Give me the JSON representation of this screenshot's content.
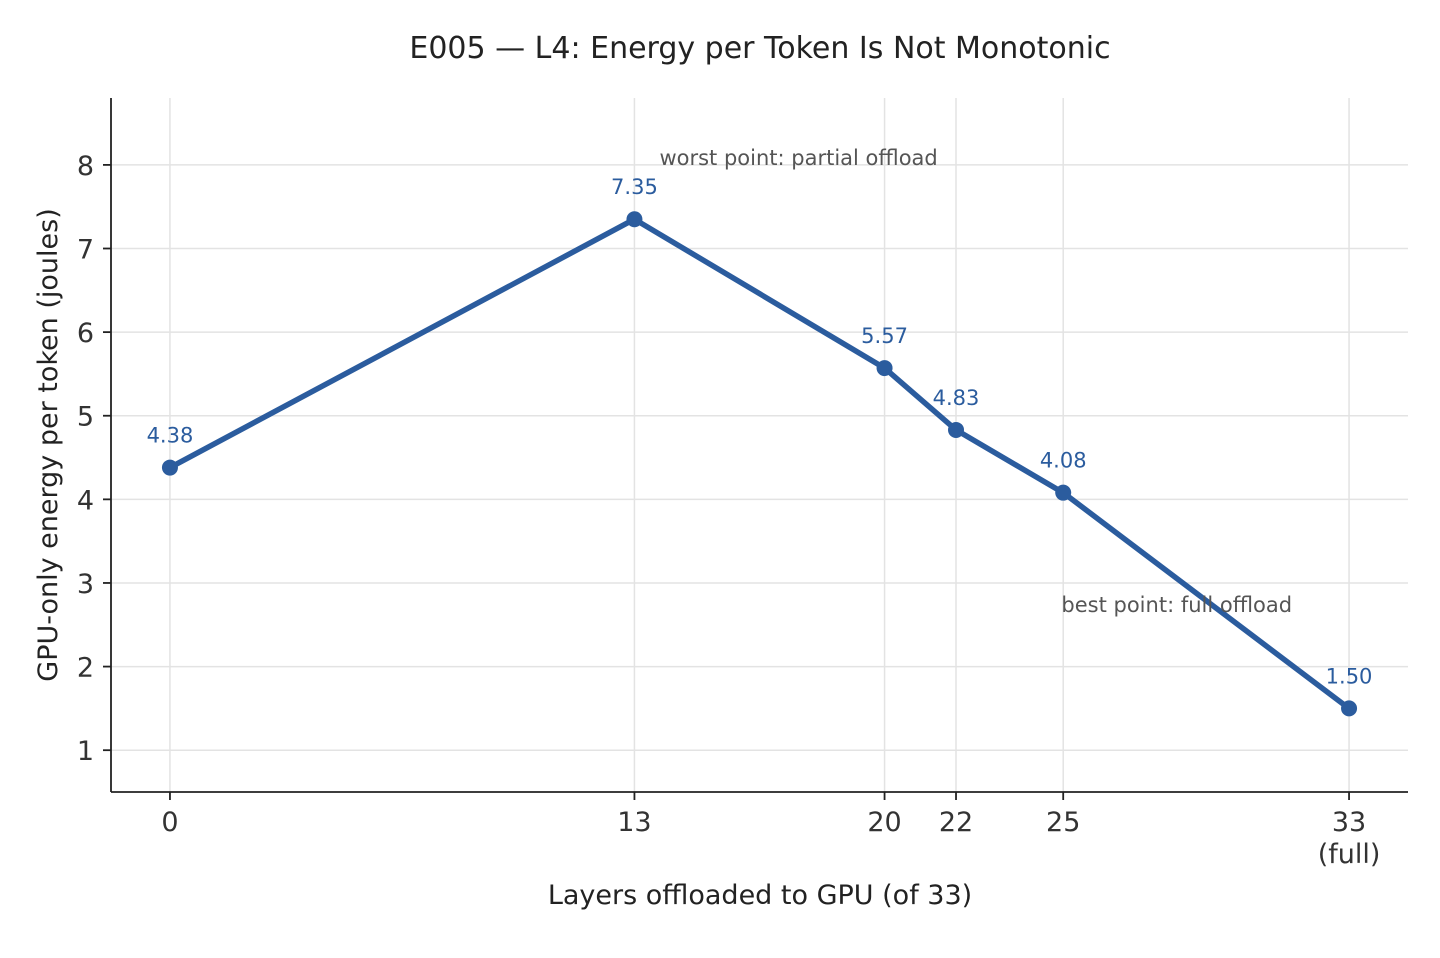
{
  "chart_data": {
    "type": "line",
    "title": "E005 — L4: Energy per Token Is Not Monotonic",
    "xlabel": "Layers offloaded to GPU (of 33)",
    "ylabel": "GPU-only energy per token (joules)",
    "x": [
      0,
      13,
      20,
      22,
      25,
      33
    ],
    "x_tick_labels": [
      "0",
      "13",
      "20",
      "22",
      "25",
      "33\n(full)"
    ],
    "y_ticks": [
      1,
      2,
      3,
      4,
      5,
      6,
      7,
      8
    ],
    "xlim": [
      -1.65,
      34.65
    ],
    "ylim": [
      0.5,
      8.8
    ],
    "series": [
      {
        "values": [
          4.38,
          7.35,
          5.57,
          4.83,
          4.08,
          1.5
        ],
        "value_labels": [
          "4.38",
          "7.35",
          "5.57",
          "4.83",
          "4.08",
          "1.50"
        ],
        "color": "#2b5c9e"
      }
    ],
    "annotations": [
      {
        "text": "worst point: partial offload",
        "x": 13.7,
        "y": 8.0
      },
      {
        "text": "best point: full offload",
        "x": 24.95,
        "y": 2.65
      }
    ],
    "grid": true,
    "legend": "none"
  }
}
